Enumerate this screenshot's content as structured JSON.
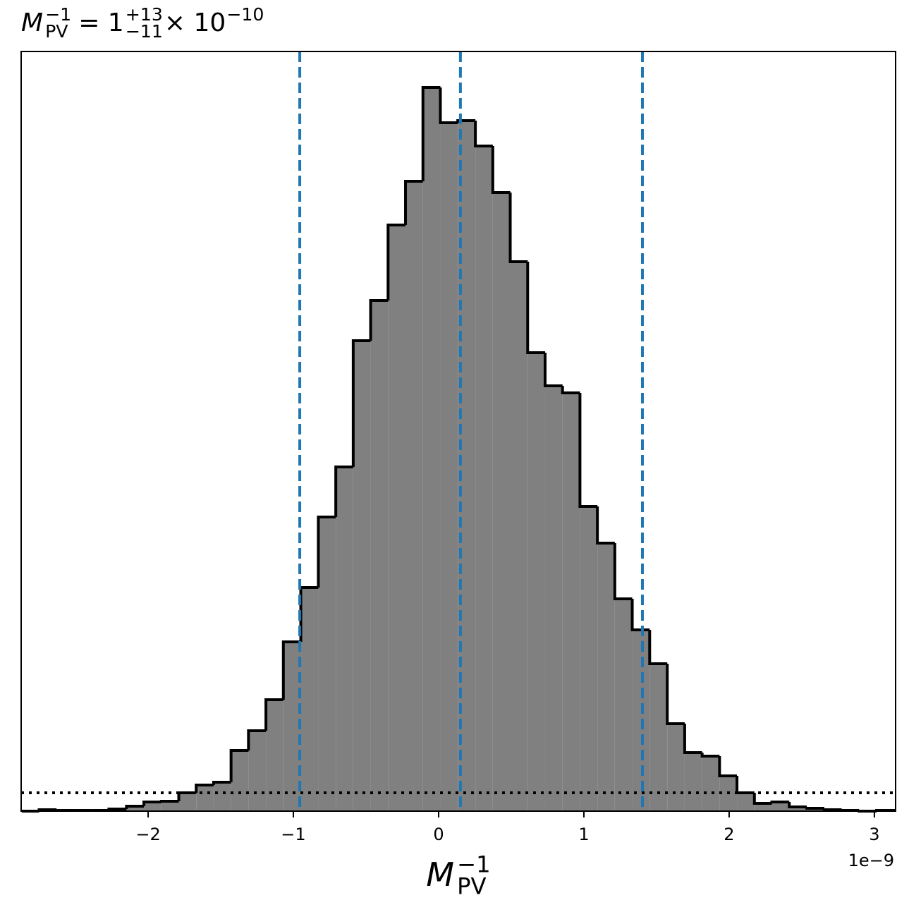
{
  "chart_data": {
    "type": "histogram",
    "title": {
      "base": "M",
      "sub": "PV",
      "sup": "−1",
      "eq": "= 1",
      "upper": "+13",
      "lower": "−11",
      "times": "× 10",
      "exp": "−10"
    },
    "xlabel": {
      "base": "M",
      "sub": "PV",
      "sup": "−1"
    },
    "offset_text": "1e−9",
    "bins": [
      -2.87,
      -2.75,
      -2.63,
      -2.51,
      -2.39,
      -2.27,
      -2.149,
      -2.029,
      -1.909,
      -1.789,
      -1.669,
      -1.549,
      -1.429,
      -1.309,
      -1.189,
      -1.069,
      -0.949,
      -0.828,
      -0.708,
      -0.588,
      -0.468,
      -0.348,
      -0.228,
      -0.108,
      0.012,
      0.132,
      0.253,
      0.373,
      0.493,
      0.613,
      0.733,
      0.853,
      0.973,
      1.093,
      1.213,
      1.333,
      1.453,
      1.574,
      1.694,
      1.814,
      1.934,
      2.054,
      2.174,
      2.294,
      2.414,
      2.535,
      2.655,
      2.775,
      2.895,
      3.015,
      3.135
    ],
    "values": [
      0,
      2,
      1,
      1,
      1,
      3,
      7,
      13,
      14,
      26,
      37,
      41,
      86,
      114,
      158,
      240,
      317,
      417,
      488,
      667,
      724,
      831,
      893,
      1026,
      976,
      979,
      943,
      877,
      779,
      650,
      603,
      593,
      432,
      380,
      301,
      257,
      209,
      124,
      83,
      78,
      50,
      26,
      11,
      13,
      6,
      4,
      2,
      1,
      0,
      1
    ],
    "color": "#808080",
    "edgecolor": "#000000",
    "xlim": [
      -2.874,
      3.146
    ],
    "ylim": [
      0,
      1077
    ],
    "xticks": [
      {
        "value": -2,
        "label": "−2"
      },
      {
        "value": -1,
        "label": "−1"
      },
      0,
      1,
      2,
      3
    ],
    "vlines": {
      "values": [
        -0.956,
        0.15,
        1.403
      ],
      "color": "#1f77b4"
    },
    "hline": {
      "value": 26,
      "color": "#000000"
    }
  }
}
